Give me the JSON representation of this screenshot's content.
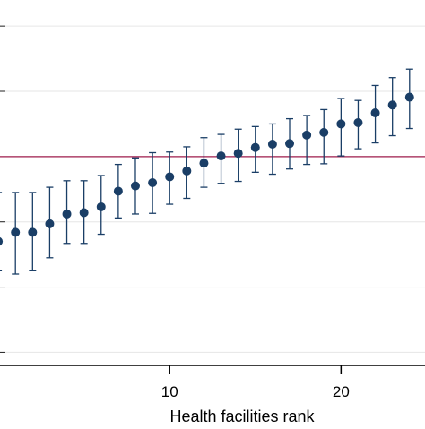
{
  "chart_data": {
    "type": "scatter",
    "title": "",
    "xlabel": "Health facilities rank",
    "ylabel": "",
    "xlim": [
      0.1,
      24.9
    ],
    "ylim": [
      -3.2,
      2.4
    ],
    "x_ticks": [
      10,
      20
    ],
    "grid": true,
    "reference_line": {
      "y": 0,
      "color": "#9e1b4b"
    },
    "marker_color": "#1a3e66",
    "series": [
      {
        "points": [
          {
            "x": 0,
            "y": -1.3,
            "lower": -1.75,
            "upper": -0.55
          },
          {
            "x": 1,
            "y": -1.16,
            "lower": -1.8,
            "upper": -0.55
          },
          {
            "x": 2,
            "y": -1.16,
            "lower": -1.75,
            "upper": -0.55
          },
          {
            "x": 3,
            "y": -1.03,
            "lower": -1.55,
            "upper": -0.47
          },
          {
            "x": 4,
            "y": -0.88,
            "lower": -1.33,
            "upper": -0.37
          },
          {
            "x": 5,
            "y": -0.86,
            "lower": -1.33,
            "upper": -0.37
          },
          {
            "x": 6,
            "y": -0.77,
            "lower": -1.19,
            "upper": -0.29
          },
          {
            "x": 7,
            "y": -0.53,
            "lower": -0.94,
            "upper": -0.12
          },
          {
            "x": 8,
            "y": -0.45,
            "lower": -0.88,
            "upper": -0.02
          },
          {
            "x": 9,
            "y": -0.4,
            "lower": -0.87,
            "upper": 0.06
          },
          {
            "x": 10,
            "y": -0.31,
            "lower": -0.73,
            "upper": 0.07
          },
          {
            "x": 11,
            "y": -0.22,
            "lower": -0.64,
            "upper": 0.15
          },
          {
            "x": 12,
            "y": -0.1,
            "lower": -0.47,
            "upper": 0.29
          },
          {
            "x": 13,
            "y": 0.01,
            "lower": -0.41,
            "upper": 0.34
          },
          {
            "x": 14,
            "y": 0.05,
            "lower": -0.38,
            "upper": 0.42
          },
          {
            "x": 15,
            "y": 0.14,
            "lower": -0.24,
            "upper": 0.46
          },
          {
            "x": 16,
            "y": 0.19,
            "lower": -0.27,
            "upper": 0.5
          },
          {
            "x": 17,
            "y": 0.2,
            "lower": -0.19,
            "upper": 0.58
          },
          {
            "x": 18,
            "y": 0.33,
            "lower": -0.12,
            "upper": 0.63
          },
          {
            "x": 19,
            "y": 0.37,
            "lower": -0.11,
            "upper": 0.72
          },
          {
            "x": 20,
            "y": 0.5,
            "lower": 0.01,
            "upper": 0.89
          },
          {
            "x": 21,
            "y": 0.52,
            "lower": 0.12,
            "upper": 0.86
          },
          {
            "x": 22,
            "y": 0.67,
            "lower": 0.21,
            "upper": 1.09
          },
          {
            "x": 23,
            "y": 0.79,
            "lower": 0.32,
            "upper": 1.21
          },
          {
            "x": 24,
            "y": 0.91,
            "lower": 0.43,
            "upper": 1.34
          }
        ]
      }
    ]
  }
}
